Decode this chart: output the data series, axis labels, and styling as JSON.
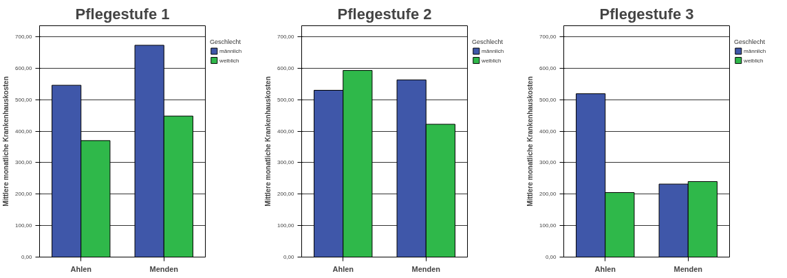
{
  "chart_data": [
    {
      "type": "bar",
      "title": "Pflegestufe 1",
      "ylabel": "Mittlere monatliche Krankenhauskosten",
      "legend_title": "Geschlecht",
      "categories": [
        "Ahlen",
        "Menden"
      ],
      "series": [
        {
          "name": "männlich",
          "color": "#3f57a9",
          "values": [
            546,
            673
          ]
        },
        {
          "name": "weiblich",
          "color": "#2fb84a",
          "values": [
            370,
            448
          ]
        }
      ],
      "ylim": [
        0,
        735
      ],
      "yticks": [
        {
          "value": 0,
          "label": "0,00"
        },
        {
          "value": 100,
          "label": "100,00"
        },
        {
          "value": 200,
          "label": "200,00"
        },
        {
          "value": 300,
          "label": "300,00"
        },
        {
          "value": 400,
          "label": "400,00"
        },
        {
          "value": 500,
          "label": "500,00"
        },
        {
          "value": 600,
          "label": "600,00"
        },
        {
          "value": 700,
          "label": "700,00"
        }
      ],
      "grid": "y",
      "legend": "right"
    },
    {
      "type": "bar",
      "title": "Pflegestufe 2",
      "ylabel": "Mittlere monatliche Krankenhauskosten",
      "legend_title": "Geschlecht",
      "categories": [
        "Ahlen",
        "Menden"
      ],
      "series": [
        {
          "name": "männlich",
          "color": "#3f57a9",
          "values": [
            530,
            563
          ]
        },
        {
          "name": "weiblich",
          "color": "#2fb84a",
          "values": [
            593,
            422
          ]
        }
      ],
      "ylim": [
        0,
        735
      ],
      "yticks": [
        {
          "value": 0,
          "label": "0,00"
        },
        {
          "value": 100,
          "label": "100,00"
        },
        {
          "value": 200,
          "label": "200,00"
        },
        {
          "value": 300,
          "label": "300,00"
        },
        {
          "value": 400,
          "label": "400,00"
        },
        {
          "value": 500,
          "label": "500,00"
        },
        {
          "value": 600,
          "label": "600,00"
        },
        {
          "value": 700,
          "label": "700,00"
        }
      ],
      "grid": "y",
      "legend": "right"
    },
    {
      "type": "bar",
      "title": "Pflegestufe 3",
      "ylabel": "Mittlere monatliche Krankenhauskosten",
      "legend_title": "Geschlecht",
      "categories": [
        "Ahlen",
        "Menden"
      ],
      "series": [
        {
          "name": "männlich",
          "color": "#3f57a9",
          "values": [
            519,
            232
          ]
        },
        {
          "name": "weiblich",
          "color": "#2fb84a",
          "values": [
            205,
            240
          ]
        }
      ],
      "ylim": [
        0,
        735
      ],
      "yticks": [
        {
          "value": 0,
          "label": "0,00"
        },
        {
          "value": 100,
          "label": "100,00"
        },
        {
          "value": 200,
          "label": "200,00"
        },
        {
          "value": 300,
          "label": "300,00"
        },
        {
          "value": 400,
          "label": "400,00"
        },
        {
          "value": 500,
          "label": "500,00"
        },
        {
          "value": 600,
          "label": "600,00"
        },
        {
          "value": 700,
          "label": "700,00"
        }
      ],
      "grid": "y",
      "legend": "right"
    }
  ]
}
